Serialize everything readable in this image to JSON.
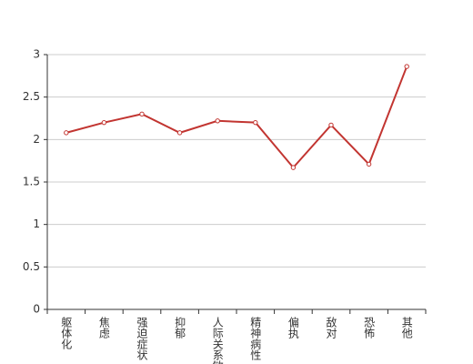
{
  "chart_data": {
    "type": "line",
    "categories": [
      "躯体化",
      "焦虑",
      "强迫症状",
      "抑郁",
      "人际关系敏感",
      "精神病性",
      "偏执",
      "敌对",
      "恐怖",
      "其他"
    ],
    "series": [
      {
        "name": null,
        "color": "#c23531",
        "values": [
          2.08,
          2.2,
          2.3,
          2.08,
          2.22,
          2.2,
          1.67,
          2.17,
          1.71,
          2.86
        ]
      }
    ],
    "ylim": [
      0,
      3
    ],
    "yticks": [
      0,
      0.5,
      1,
      1.5,
      2,
      2.5,
      3
    ],
    "grid": true
  }
}
